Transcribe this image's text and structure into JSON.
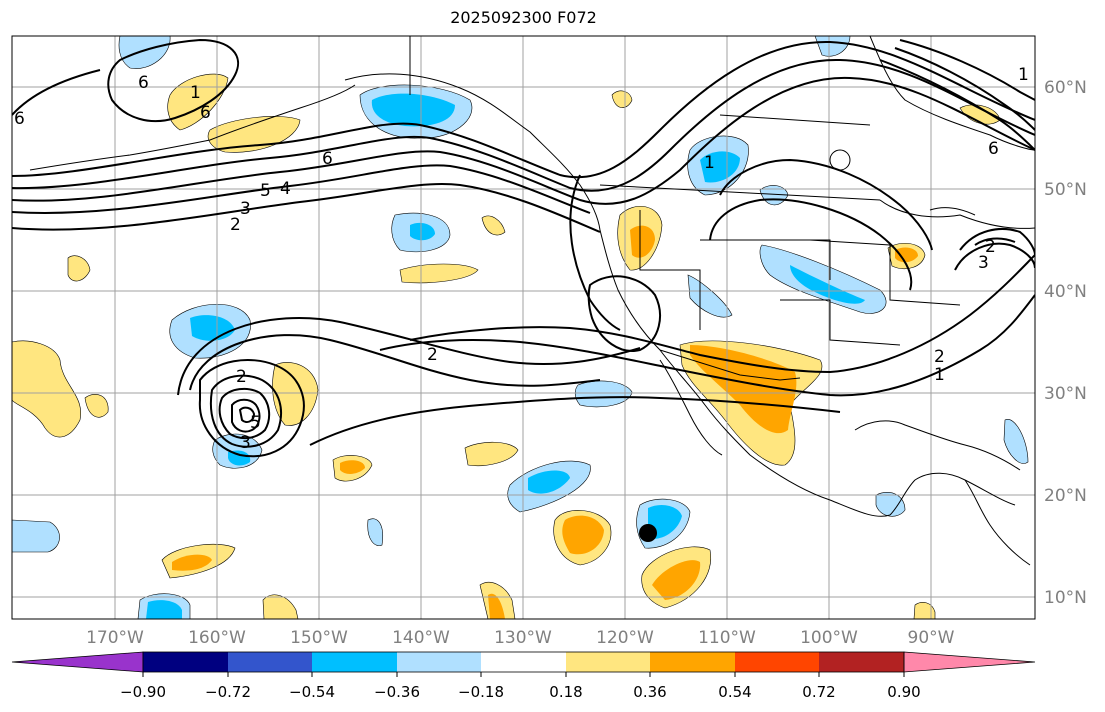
{
  "title": "2025092300 F072",
  "lon_labels": [
    "170°W",
    "160°W",
    "150°W",
    "140°W",
    "130°W",
    "120°W",
    "110°W",
    "100°W",
    "90°W"
  ],
  "lat_labels": [
    "60°N",
    "50°N",
    "40°N",
    "30°N",
    "20°N",
    "10°N"
  ],
  "colorbar": {
    "ticks": [
      "−0.90",
      "−0.72",
      "−0.54",
      "−0.36",
      "−0.18",
      "0.18",
      "0.36",
      "0.54",
      "0.72",
      "0.90"
    ],
    "colors": [
      "#9933cc",
      "#000080",
      "#3355cc",
      "#00bfff",
      "#b0e0ff",
      "#ffffff",
      "#ffe680",
      "#ffa500",
      "#ff4500",
      "#b22222",
      "#ff88aa"
    ]
  },
  "contour_labels": [
    "6",
    "6",
    "6",
    "5",
    "4",
    "3",
    "2",
    "1",
    "6",
    "2",
    "2",
    "2",
    "5",
    "3",
    "1",
    "6",
    "1",
    "2",
    "3",
    "1"
  ],
  "colors": {
    "contour": "#000000",
    "grid": "#a0a0a0",
    "coast": "#000000",
    "label": "#808080"
  }
}
